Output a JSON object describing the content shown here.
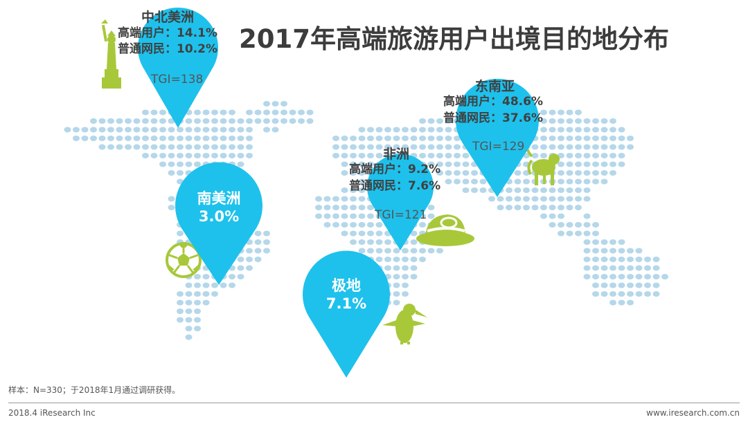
{
  "title": "2017年高端旅游用户出境目的地分布",
  "colors": {
    "dot": "#b5d7ea",
    "pin": "#1ec1ec",
    "icon": "#a8c83a",
    "title": "#3c3c3c"
  },
  "regions": {
    "north_america": {
      "name": "中北美洲",
      "premium_label": "高端用户：14.1%",
      "general_label": "普通网民：10.2%",
      "tgi": "TGI=138",
      "premium_pct": 14.1,
      "general_pct": 10.2,
      "tgi_value": 138
    },
    "southeast_asia": {
      "name": "东南亚",
      "premium_label": "高端用户：48.6%",
      "general_label": "普通网民：37.6%",
      "tgi": "TGI=129",
      "premium_pct": 48.6,
      "general_pct": 37.6,
      "tgi_value": 129
    },
    "africa": {
      "name": "非洲",
      "premium_label": "高端用户：9.2%",
      "general_label": "普通网民：7.6%",
      "tgi": "TGI=121",
      "premium_pct": 9.2,
      "general_pct": 7.6,
      "tgi_value": 121
    },
    "south_america": {
      "name": "南美洲",
      "value": "3.0%"
    },
    "polar": {
      "name": "极地",
      "value": "7.1%"
    }
  },
  "icons": {
    "north_america": "statue-of-liberty-icon",
    "south_america": "soccer-ball-icon",
    "africa": "safari-hat-icon",
    "southeast_asia": "monkey-icon",
    "polar": "penguin-icon"
  },
  "footnote": "样本：N=330；于2018年1月通过调研获得。",
  "footer": {
    "left": "2018.4 iResearch Inc",
    "right": "www.iresearch.com.cn"
  }
}
